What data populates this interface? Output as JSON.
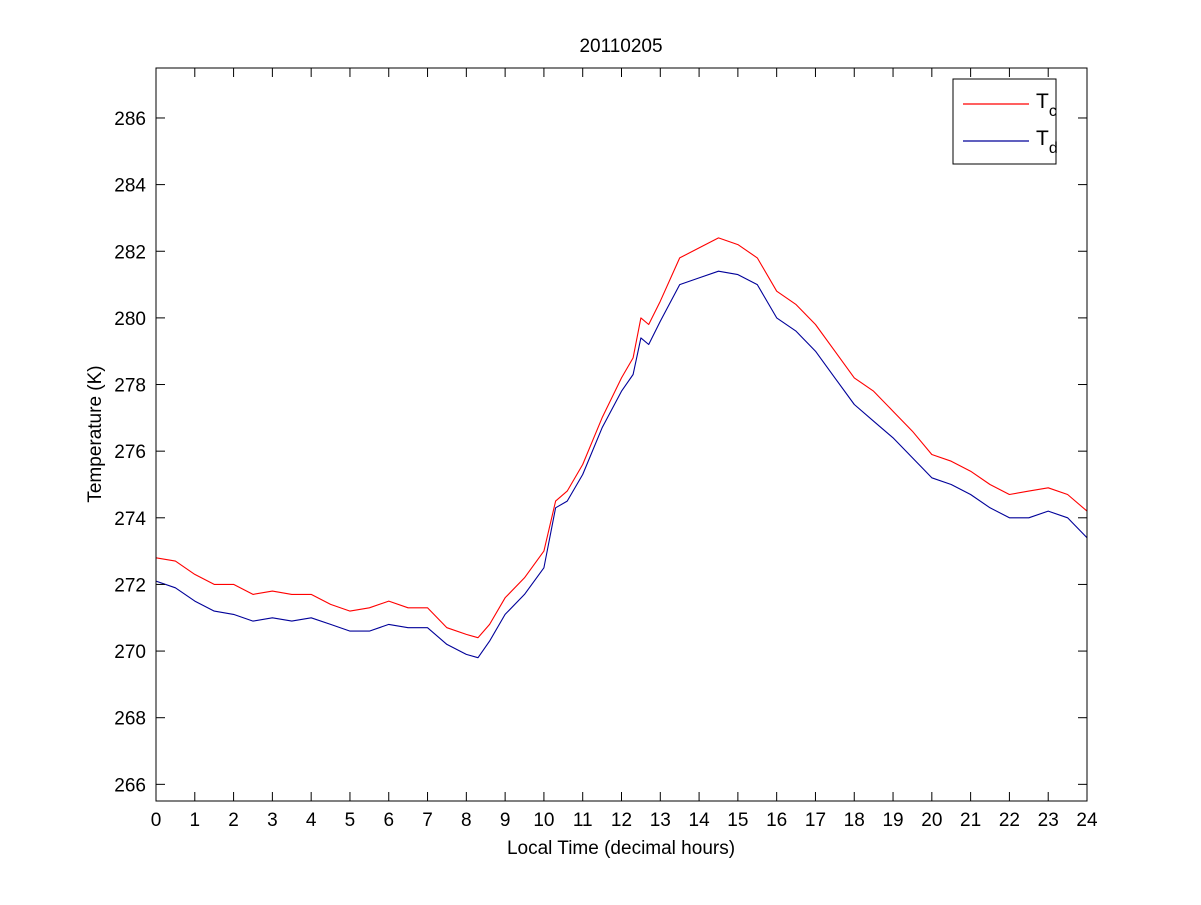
{
  "chart_data": {
    "type": "line",
    "title": "20110205",
    "xlabel": "Local Time (decimal hours)",
    "ylabel": "Temperature (K)",
    "xlim": [
      0,
      24
    ],
    "ylim": [
      265.5,
      287.5
    ],
    "xticks": [
      0,
      1,
      2,
      3,
      4,
      5,
      6,
      7,
      8,
      9,
      10,
      11,
      12,
      13,
      14,
      15,
      16,
      17,
      18,
      19,
      20,
      21,
      22,
      23,
      24
    ],
    "yticks": [
      266,
      268,
      270,
      272,
      274,
      276,
      278,
      280,
      282,
      284,
      286
    ],
    "grid": false,
    "legend_position": "top-right",
    "series": [
      {
        "name": "T",
        "subscript": "c",
        "color": "#ff0000",
        "x": [
          0,
          0.5,
          1,
          1.5,
          2,
          2.5,
          3,
          3.5,
          4,
          4.5,
          5,
          5.5,
          6,
          6.5,
          7,
          7.5,
          8,
          8.3,
          8.6,
          9,
          9.5,
          10,
          10.3,
          10.6,
          11,
          11.5,
          12,
          12.3,
          12.5,
          12.7,
          13,
          13.5,
          14,
          14.5,
          15,
          15.5,
          16,
          16.5,
          17,
          17.5,
          18,
          18.5,
          19,
          19.5,
          20,
          20.5,
          21,
          21.5,
          22,
          22.5,
          23,
          23.5,
          24
        ],
        "y": [
          272.8,
          272.7,
          272.3,
          272.0,
          272.0,
          271.7,
          271.8,
          271.7,
          271.7,
          271.4,
          271.2,
          271.3,
          271.5,
          271.3,
          271.3,
          270.7,
          270.5,
          270.4,
          270.8,
          271.6,
          272.2,
          273.0,
          274.5,
          274.8,
          275.6,
          277.0,
          278.2,
          278.8,
          280.0,
          279.8,
          280.5,
          281.8,
          282.1,
          282.4,
          282.2,
          281.8,
          280.8,
          280.4,
          279.8,
          279.0,
          278.2,
          277.8,
          277.2,
          276.6,
          275.9,
          275.7,
          275.4,
          275.0,
          274.7,
          274.8,
          274.9,
          274.7,
          274.2
        ]
      },
      {
        "name": "T",
        "subscript": "d",
        "color": "#000099",
        "x": [
          0,
          0.5,
          1,
          1.5,
          2,
          2.5,
          3,
          3.5,
          4,
          4.5,
          5,
          5.5,
          6,
          6.5,
          7,
          7.5,
          8,
          8.3,
          8.6,
          9,
          9.5,
          10,
          10.3,
          10.6,
          11,
          11.5,
          12,
          12.3,
          12.5,
          12.7,
          13,
          13.5,
          14,
          14.5,
          15,
          15.5,
          16,
          16.5,
          17,
          17.5,
          18,
          18.5,
          19,
          19.5,
          20,
          20.5,
          21,
          21.5,
          22,
          22.5,
          23,
          23.5,
          24
        ],
        "y": [
          272.1,
          271.9,
          271.5,
          271.2,
          271.1,
          270.9,
          271.0,
          270.9,
          271.0,
          270.8,
          270.6,
          270.6,
          270.8,
          270.7,
          270.7,
          270.2,
          269.9,
          269.8,
          270.3,
          271.1,
          271.7,
          272.5,
          274.3,
          274.5,
          275.3,
          276.7,
          277.8,
          278.3,
          279.4,
          279.2,
          279.9,
          281.0,
          281.2,
          281.4,
          281.3,
          281.0,
          280.0,
          279.6,
          279.0,
          278.2,
          277.4,
          276.9,
          276.4,
          275.8,
          275.2,
          275.0,
          274.7,
          274.3,
          274.0,
          274.0,
          274.2,
          274.0,
          273.4
        ]
      }
    ]
  }
}
